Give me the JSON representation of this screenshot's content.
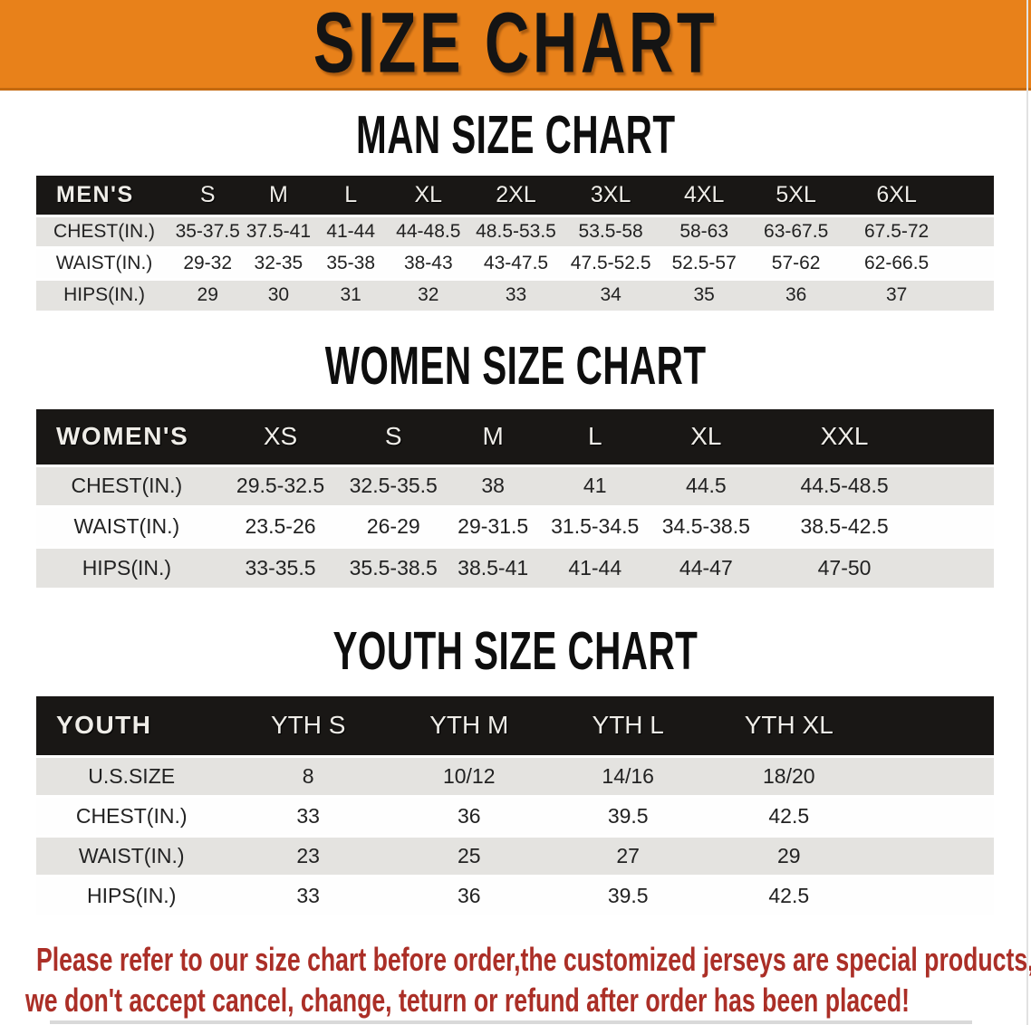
{
  "banner": {
    "title": "SIZE CHART"
  },
  "colors": {
    "banner_bg": "#E8811A",
    "banner_border": "#C4690F",
    "header_bar": "#191715",
    "row_gray": "#E4E3E0",
    "row_white": "#FEFEFE",
    "disclaimer_red": "#AB2F27"
  },
  "sections": [
    {
      "id": "men",
      "heading": "MAN SIZE CHART",
      "corner_label": "MEN'S",
      "columns": [
        "S",
        "M",
        "L",
        "XL",
        "2XL",
        "3XL",
        "4XL",
        "5XL",
        "6XL"
      ],
      "rows": [
        {
          "label": "CHEST(IN.)",
          "values": [
            "35-37.5",
            "37.5-41",
            "41-44",
            "44-48.5",
            "48.5-53.5",
            "53.5-58",
            "58-63",
            "63-67.5",
            "67.5-72"
          ]
        },
        {
          "label": "WAIST(IN.)",
          "values": [
            "29-32",
            "32-35",
            "35-38",
            "38-43",
            "43-47.5",
            "47.5-52.5",
            "52.5-57",
            "57-62",
            "62-66.5"
          ]
        },
        {
          "label": "HIPS(IN.)",
          "values": [
            "29",
            "30",
            "31",
            "32",
            "33",
            "34",
            "35",
            "36",
            "37"
          ]
        }
      ]
    },
    {
      "id": "women",
      "heading": "WOMEN SIZE CHART",
      "corner_label": "WOMEN'S",
      "columns": [
        "XS",
        "S",
        "M",
        "L",
        "XL",
        "XXL"
      ],
      "rows": [
        {
          "label": "CHEST(IN.)",
          "values": [
            "29.5-32.5",
            "32.5-35.5",
            "38",
            "41",
            "44.5",
            "44.5-48.5"
          ]
        },
        {
          "label": "WAIST(IN.)",
          "values": [
            "23.5-26",
            "26-29",
            "29-31.5",
            "31.5-34.5",
            "34.5-38.5",
            "38.5-42.5"
          ]
        },
        {
          "label": "HIPS(IN.)",
          "values": [
            "33-35.5",
            "35.5-38.5",
            "38.5-41",
            "41-44",
            "44-47",
            "47-50"
          ]
        }
      ]
    },
    {
      "id": "youth",
      "heading": "YOUTH SIZE CHART",
      "corner_label": "YOUTH",
      "columns": [
        "YTH S",
        "YTH M",
        "YTH L",
        "YTH XL"
      ],
      "rows": [
        {
          "label": "U.S.SIZE",
          "values": [
            "8",
            "10/12",
            "14/16",
            "18/20"
          ]
        },
        {
          "label": "CHEST(IN.)",
          "values": [
            "33",
            "36",
            "39.5",
            "42.5"
          ]
        },
        {
          "label": "WAIST(IN.)",
          "values": [
            "23",
            "25",
            "27",
            "29"
          ]
        },
        {
          "label": "HIPS(IN.)",
          "values": [
            "33",
            "36",
            "39.5",
            "42.5"
          ]
        }
      ]
    }
  ],
  "disclaimer": {
    "line1": "Please refer to our size chart before order,the customized jerseys are special products,",
    "line2": "we don't accept cancel, change, teturn or refund after order has been placed!"
  }
}
